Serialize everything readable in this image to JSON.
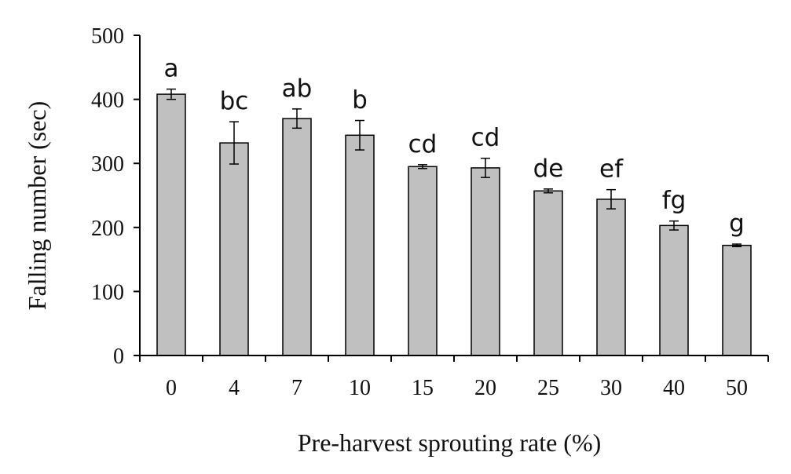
{
  "chart_data": {
    "type": "bar",
    "categories": [
      "0",
      "4",
      "7",
      "10",
      "15",
      "20",
      "25",
      "30",
      "40",
      "50"
    ],
    "values": [
      408,
      332,
      370,
      344,
      295,
      293,
      257,
      244,
      203,
      172
    ],
    "errors": [
      8,
      33,
      15,
      23,
      3,
      15,
      3,
      15,
      7,
      2
    ],
    "significance_letters": [
      "a",
      "bc",
      "ab",
      "b",
      "cd",
      "cd",
      "de",
      "ef",
      "fg",
      "g"
    ],
    "xlabel": "Pre-harvest sprouting rate (%)",
    "ylabel": "Falling number (sec)",
    "ylim": [
      0,
      500
    ],
    "yticks": [
      0,
      100,
      200,
      300,
      400,
      500
    ],
    "grid": false,
    "bar_color": "#c0c0c0",
    "edge_color": "#000000"
  }
}
